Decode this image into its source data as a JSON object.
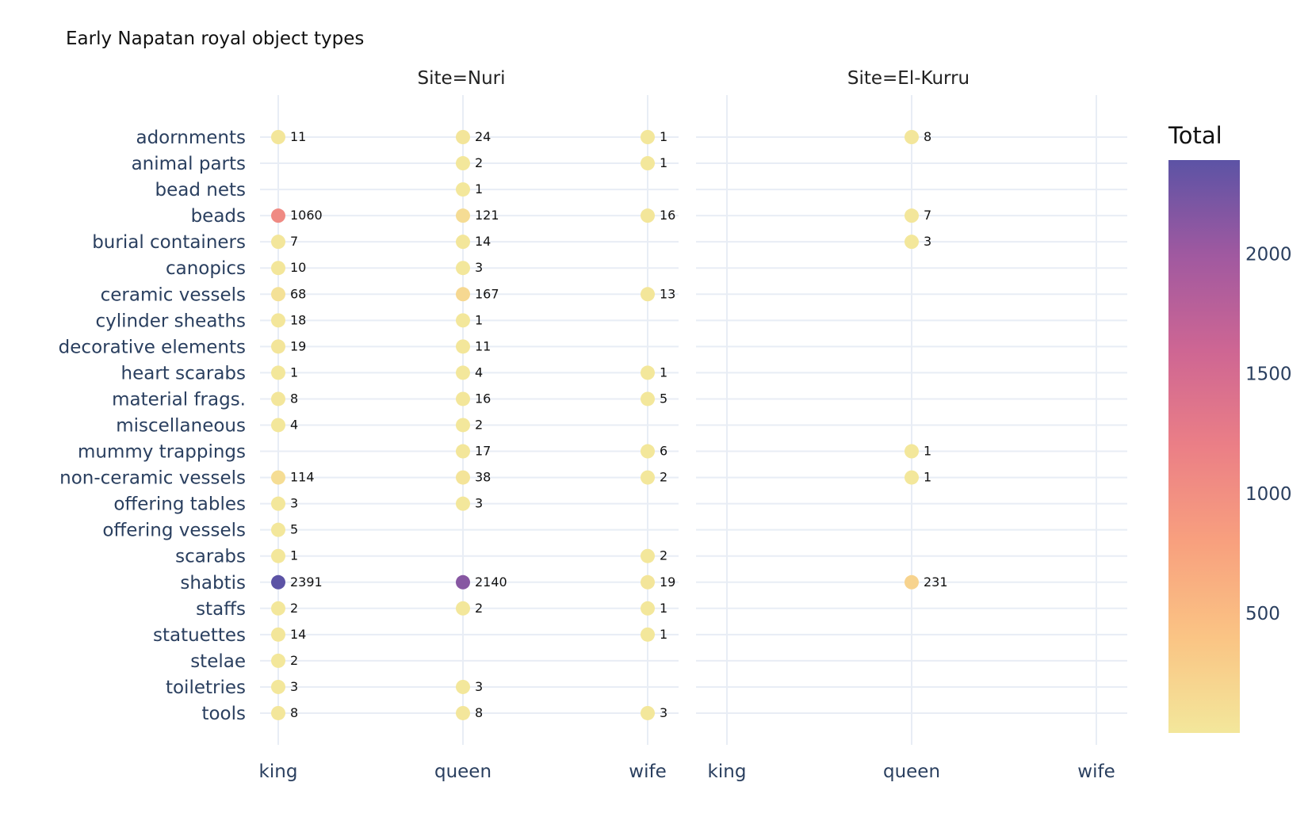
{
  "chart_data": {
    "type": "scatter",
    "title": "Early Napatan royal object types",
    "facets": [
      "Site=Nuri",
      "Site=El-Kurru"
    ],
    "x_categories": [
      "king",
      "queen",
      "wife"
    ],
    "y_categories": [
      "adornments",
      "animal parts",
      "bead nets",
      "beads",
      "burial containers",
      "canopics",
      "ceramic vessels",
      "cylinder sheaths",
      "decorative elements",
      "heart scarabs",
      "material frags.",
      "miscellaneous",
      "mummy trappings",
      "non-ceramic vessels",
      "offering tables",
      "offering vessels",
      "scarabs",
      "shabtis",
      "staffs",
      "statuettes",
      "stelae",
      "toiletries",
      "tools"
    ],
    "colorbar": {
      "title": "Total",
      "min": 1,
      "max": 2391,
      "tick_values": [
        500,
        1000,
        1500,
        2000
      ],
      "tick_labels": [
        "500",
        "1000",
        "1500",
        "2000"
      ],
      "colorscale": [
        "#f3e79b",
        "#fac484",
        "#f8a07e",
        "#eb7f86",
        "#ce6693",
        "#a059a0",
        "#5c53a5"
      ]
    },
    "points": [
      {
        "site": "Site=Nuri",
        "type": "adornments",
        "role": "king",
        "count": 11
      },
      {
        "site": "Site=Nuri",
        "type": "adornments",
        "role": "queen",
        "count": 24
      },
      {
        "site": "Site=Nuri",
        "type": "adornments",
        "role": "wife",
        "count": 1
      },
      {
        "site": "Site=Nuri",
        "type": "animal parts",
        "role": "queen",
        "count": 2
      },
      {
        "site": "Site=Nuri",
        "type": "animal parts",
        "role": "wife",
        "count": 1
      },
      {
        "site": "Site=Nuri",
        "type": "bead nets",
        "role": "queen",
        "count": 1
      },
      {
        "site": "Site=Nuri",
        "type": "beads",
        "role": "king",
        "count": 1060
      },
      {
        "site": "Site=Nuri",
        "type": "beads",
        "role": "queen",
        "count": 121
      },
      {
        "site": "Site=Nuri",
        "type": "beads",
        "role": "wife",
        "count": 16
      },
      {
        "site": "Site=Nuri",
        "type": "burial containers",
        "role": "king",
        "count": 7
      },
      {
        "site": "Site=Nuri",
        "type": "burial containers",
        "role": "queen",
        "count": 14
      },
      {
        "site": "Site=Nuri",
        "type": "canopics",
        "role": "king",
        "count": 10
      },
      {
        "site": "Site=Nuri",
        "type": "canopics",
        "role": "queen",
        "count": 3
      },
      {
        "site": "Site=Nuri",
        "type": "ceramic vessels",
        "role": "king",
        "count": 68
      },
      {
        "site": "Site=Nuri",
        "type": "ceramic vessels",
        "role": "queen",
        "count": 167
      },
      {
        "site": "Site=Nuri",
        "type": "ceramic vessels",
        "role": "wife",
        "count": 13
      },
      {
        "site": "Site=Nuri",
        "type": "cylinder sheaths",
        "role": "king",
        "count": 18
      },
      {
        "site": "Site=Nuri",
        "type": "cylinder sheaths",
        "role": "queen",
        "count": 1
      },
      {
        "site": "Site=Nuri",
        "type": "decorative elements",
        "role": "king",
        "count": 19
      },
      {
        "site": "Site=Nuri",
        "type": "decorative elements",
        "role": "queen",
        "count": 11
      },
      {
        "site": "Site=Nuri",
        "type": "heart scarabs",
        "role": "king",
        "count": 1
      },
      {
        "site": "Site=Nuri",
        "type": "heart scarabs",
        "role": "queen",
        "count": 4
      },
      {
        "site": "Site=Nuri",
        "type": "heart scarabs",
        "role": "wife",
        "count": 1
      },
      {
        "site": "Site=Nuri",
        "type": "material frags.",
        "role": "king",
        "count": 8
      },
      {
        "site": "Site=Nuri",
        "type": "material frags.",
        "role": "queen",
        "count": 16
      },
      {
        "site": "Site=Nuri",
        "type": "material frags.",
        "role": "wife",
        "count": 5
      },
      {
        "site": "Site=Nuri",
        "type": "miscellaneous",
        "role": "king",
        "count": 4
      },
      {
        "site": "Site=Nuri",
        "type": "miscellaneous",
        "role": "queen",
        "count": 2
      },
      {
        "site": "Site=Nuri",
        "type": "mummy trappings",
        "role": "queen",
        "count": 17
      },
      {
        "site": "Site=Nuri",
        "type": "mummy trappings",
        "role": "wife",
        "count": 6
      },
      {
        "site": "Site=Nuri",
        "type": "non-ceramic vessels",
        "role": "king",
        "count": 114
      },
      {
        "site": "Site=Nuri",
        "type": "non-ceramic vessels",
        "role": "queen",
        "count": 38
      },
      {
        "site": "Site=Nuri",
        "type": "non-ceramic vessels",
        "role": "wife",
        "count": 2
      },
      {
        "site": "Site=Nuri",
        "type": "offering tables",
        "role": "king",
        "count": 3
      },
      {
        "site": "Site=Nuri",
        "type": "offering tables",
        "role": "queen",
        "count": 3
      },
      {
        "site": "Site=Nuri",
        "type": "offering vessels",
        "role": "king",
        "count": 5
      },
      {
        "site": "Site=Nuri",
        "type": "scarabs",
        "role": "king",
        "count": 1
      },
      {
        "site": "Site=Nuri",
        "type": "scarabs",
        "role": "wife",
        "count": 2
      },
      {
        "site": "Site=Nuri",
        "type": "shabtis",
        "role": "king",
        "count": 2391
      },
      {
        "site": "Site=Nuri",
        "type": "shabtis",
        "role": "queen",
        "count": 2140
      },
      {
        "site": "Site=Nuri",
        "type": "shabtis",
        "role": "wife",
        "count": 19
      },
      {
        "site": "Site=Nuri",
        "type": "staffs",
        "role": "king",
        "count": 2
      },
      {
        "site": "Site=Nuri",
        "type": "staffs",
        "role": "queen",
        "count": 2
      },
      {
        "site": "Site=Nuri",
        "type": "staffs",
        "role": "wife",
        "count": 1
      },
      {
        "site": "Site=Nuri",
        "type": "statuettes",
        "role": "king",
        "count": 14
      },
      {
        "site": "Site=Nuri",
        "type": "statuettes",
        "role": "wife",
        "count": 1
      },
      {
        "site": "Site=Nuri",
        "type": "stelae",
        "role": "king",
        "count": 2
      },
      {
        "site": "Site=Nuri",
        "type": "toiletries",
        "role": "king",
        "count": 3
      },
      {
        "site": "Site=Nuri",
        "type": "toiletries",
        "role": "queen",
        "count": 3
      },
      {
        "site": "Site=Nuri",
        "type": "tools",
        "role": "king",
        "count": 8
      },
      {
        "site": "Site=Nuri",
        "type": "tools",
        "role": "queen",
        "count": 8
      },
      {
        "site": "Site=Nuri",
        "type": "tools",
        "role": "wife",
        "count": 3
      },
      {
        "site": "Site=El-Kurru",
        "type": "adornments",
        "role": "queen",
        "count": 8
      },
      {
        "site": "Site=El-Kurru",
        "type": "beads",
        "role": "queen",
        "count": 7
      },
      {
        "site": "Site=El-Kurru",
        "type": "burial containers",
        "role": "queen",
        "count": 3
      },
      {
        "site": "Site=El-Kurru",
        "type": "mummy trappings",
        "role": "queen",
        "count": 1
      },
      {
        "site": "Site=El-Kurru",
        "type": "non-ceramic vessels",
        "role": "queen",
        "count": 1
      },
      {
        "site": "Site=El-Kurru",
        "type": "shabtis",
        "role": "queen",
        "count": 231
      }
    ]
  }
}
